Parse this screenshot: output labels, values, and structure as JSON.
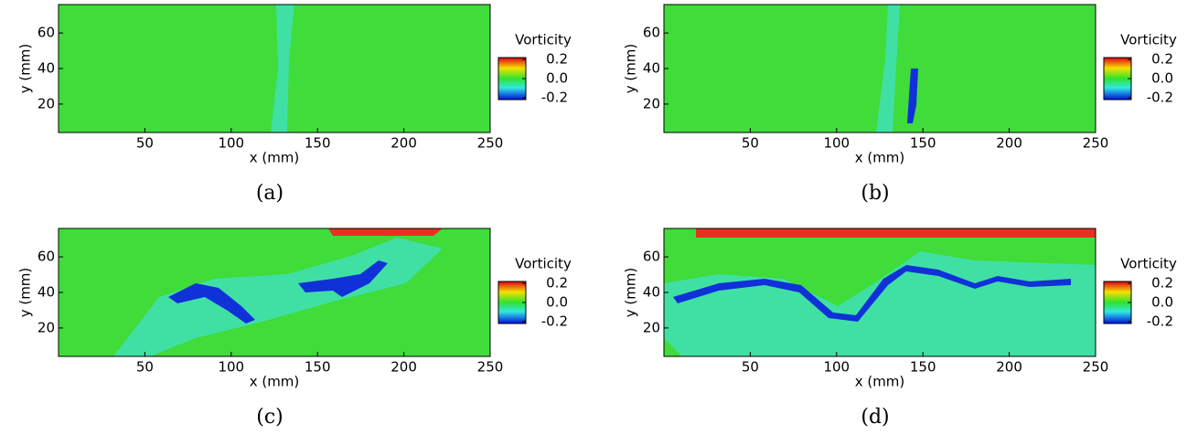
{
  "chart_data": [
    {
      "type": "heatmap",
      "caption": "(a)",
      "xlabel": "x (mm)",
      "ylabel": "y (mm)",
      "xlim": [
        0,
        250
      ],
      "ylim": [
        4,
        76
      ],
      "xticks": [
        50,
        100,
        150,
        200,
        250
      ],
      "yticks": [
        20,
        40,
        60
      ],
      "colorbar": {
        "title": "Vorticity",
        "clim": [
          -0.22,
          0.22
        ],
        "ticks": [
          0.2,
          {
            "value": 0,
            "label": "0.0"
          },
          -0.2
        ]
      }
    },
    {
      "type": "heatmap",
      "caption": "(b)",
      "xlabel": "x (mm)",
      "ylabel": "y (mm)",
      "xlim": [
        0,
        250
      ],
      "ylim": [
        4,
        76
      ],
      "xticks": [
        50,
        100,
        150,
        200,
        250
      ],
      "yticks": [
        20,
        40,
        60
      ],
      "colorbar": {
        "title": "Vorticity",
        "clim": [
          -0.22,
          0.22
        ],
        "ticks": [
          0.2,
          {
            "value": 0,
            "label": "0.0"
          },
          -0.2
        ]
      }
    },
    {
      "type": "heatmap",
      "caption": "(c)",
      "xlabel": "x (mm)",
      "ylabel": "y (mm)",
      "xlim": [
        0,
        250
      ],
      "ylim": [
        4,
        76
      ],
      "xticks": [
        50,
        100,
        150,
        200,
        250
      ],
      "yticks": [
        20,
        40,
        60
      ],
      "colorbar": {
        "title": "Vorticity",
        "clim": [
          -0.22,
          0.22
        ],
        "ticks": [
          0.2,
          {
            "value": 0,
            "label": "0.0"
          },
          -0.2
        ]
      }
    },
    {
      "type": "heatmap",
      "caption": "(d)",
      "xlabel": "x (mm)",
      "ylabel": "y (mm)",
      "xlim": [
        0,
        250
      ],
      "ylim": [
        4,
        76
      ],
      "xticks": [
        50,
        100,
        150,
        200,
        250
      ],
      "yticks": [
        20,
        40,
        60
      ],
      "colorbar": {
        "title": "Vorticity",
        "clim": [
          -0.22,
          0.22
        ],
        "ticks": [
          0.2,
          {
            "value": 0,
            "label": "0.0"
          },
          -0.2
        ]
      }
    }
  ]
}
